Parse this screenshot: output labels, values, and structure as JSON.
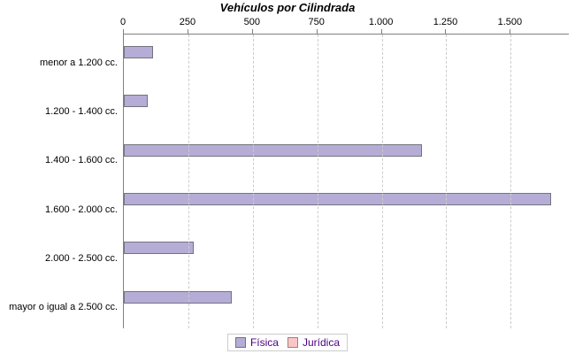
{
  "chart_data": {
    "type": "bar",
    "orientation": "horizontal",
    "title": "Vehículos por Cilindrada",
    "categories": [
      "menor a 1.200 cc.",
      "1.200 - 1.400 cc.",
      "1.400 - 1.600 cc.",
      "1.600 - 2.000 cc.",
      "2.000 - 2.500 cc.",
      "mayor o igual a 2.500 cc."
    ],
    "series": [
      {
        "name": "Física",
        "values": [
          105,
          85,
          1150,
          1650,
          265,
          410
        ],
        "color": "#b5add6",
        "border_color": "#73737f"
      },
      {
        "name": "Jurídica",
        "values": [
          0,
          0,
          0,
          0,
          0,
          0
        ],
        "color": "#f8c6c6",
        "border_color": "#a77e7e"
      }
    ],
    "x_axis": {
      "position": "top",
      "min": 0,
      "max": 1725,
      "ticks": [
        0,
        250,
        500,
        750,
        1000,
        1250,
        1500
      ],
      "tick_labels": [
        "0",
        "250",
        "500",
        "750",
        "1.000",
        "1.250",
        "1.500"
      ]
    },
    "grid": "dashed-vertical",
    "legend_position": "bottom",
    "colors": {
      "axis_line": "#808080",
      "gridline": "#cccccc",
      "legend_text": "#4b0082",
      "title_text": "#000000"
    }
  }
}
